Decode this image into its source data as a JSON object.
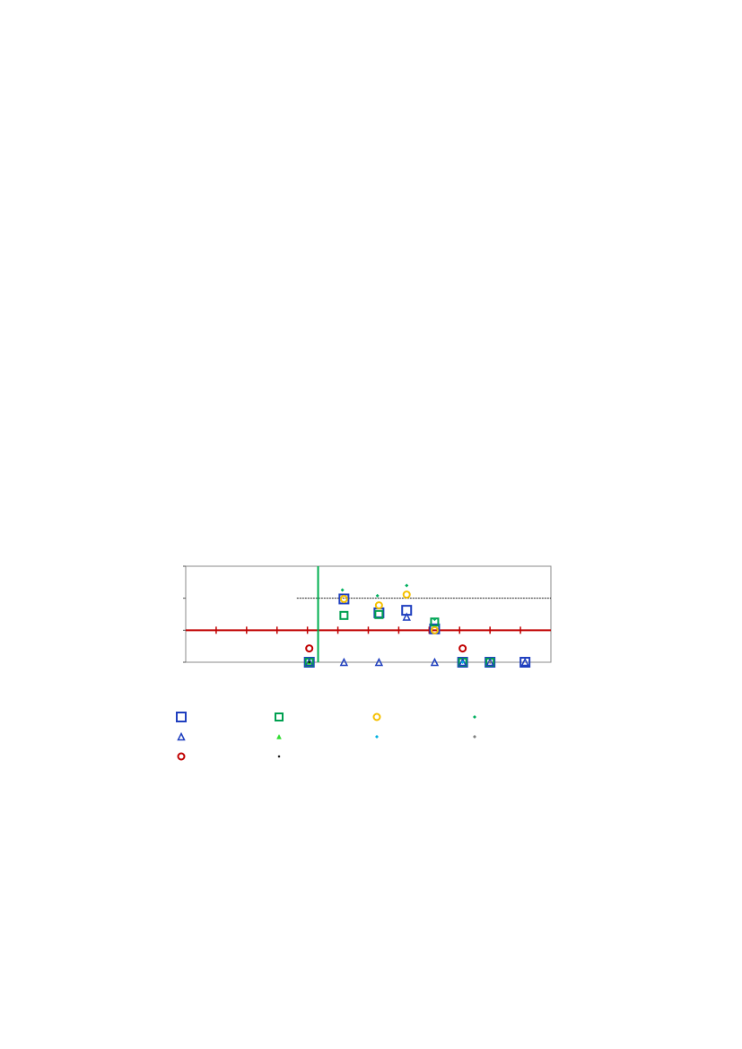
{
  "chart_data": {
    "type": "scatter",
    "log_y": true,
    "xlim": [
      0,
      12
    ],
    "xticks": [
      1,
      2,
      3,
      4,
      5,
      6,
      7,
      8,
      9,
      10,
      11
    ],
    "ylim": [
      0.1,
      100
    ],
    "yticks": [
      0.1,
      1,
      10,
      100
    ],
    "reference_lines": [
      {
        "axis": "y",
        "value": 1,
        "color": "#c00000",
        "style": "solid"
      },
      {
        "axis": "y",
        "value": 10,
        "from": 3.65,
        "color": "#000000",
        "style": "dashed"
      },
      {
        "axis": "x",
        "value": 4.35,
        "color": "#00b050",
        "style": "solid"
      }
    ],
    "series": [
      {
        "marker": "square",
        "color": "#1f3fbf",
        "size": 10,
        "x": [
          4.06,
          5.2,
          6.35,
          7.26,
          8.18,
          9.1,
          10.0,
          11.15
        ],
        "values": [
          0.1,
          9.5,
          3.5,
          4.2,
          1.1,
          0.1,
          0.1,
          0.1
        ]
      },
      {
        "marker": "square",
        "color": "#00a050",
        "size": 8,
        "x": [
          4.06,
          5.2,
          6.35,
          8.18,
          9.1,
          10.0
        ],
        "values": [
          0.1,
          2.9,
          3.1,
          1.8,
          0.1,
          0.1
        ]
      },
      {
        "marker": "circle",
        "color": "#f5c000",
        "size": 7,
        "x": [
          5.2,
          6.35,
          7.26,
          8.18
        ],
        "values": [
          9.5,
          6,
          13,
          1
        ]
      },
      {
        "marker": "diamond",
        "color": "#00b060",
        "size": 4,
        "x": [
          5.15,
          6.3,
          7.26,
          8.18
        ],
        "values": [
          18,
          12,
          25,
          2.2
        ]
      },
      {
        "marker": "triangle",
        "color": "#1f3fbf",
        "size": 7,
        "x": [
          4.06,
          5.2,
          6.35,
          7.26,
          8.18,
          9.1,
          10.0,
          11.15
        ],
        "values": [
          0.1,
          0.1,
          0.1,
          2.6,
          0.1,
          0.1,
          0.1,
          0.1
        ]
      },
      {
        "marker": "filled-triangle",
        "color": "#33dd33",
        "size": 5,
        "x": [
          4.06
        ],
        "values": [
          0.1
        ]
      },
      {
        "marker": "diamond",
        "color": "#00b0e0",
        "size": 4,
        "x": [
          9.1
        ],
        "values": [
          0.1
        ]
      },
      {
        "marker": "diamond",
        "color": "#808080",
        "size": 4,
        "x": [
          10.0
        ],
        "values": [
          0.1
        ]
      },
      {
        "marker": "circle",
        "color": "#c00000",
        "size": 7,
        "x": [
          4.06,
          9.1
        ],
        "values": [
          0.27,
          0.27
        ]
      },
      {
        "marker": "diamond",
        "color": "#000000",
        "size": 3,
        "x": [
          4.06
        ],
        "values": [
          0.1
        ]
      }
    ]
  }
}
